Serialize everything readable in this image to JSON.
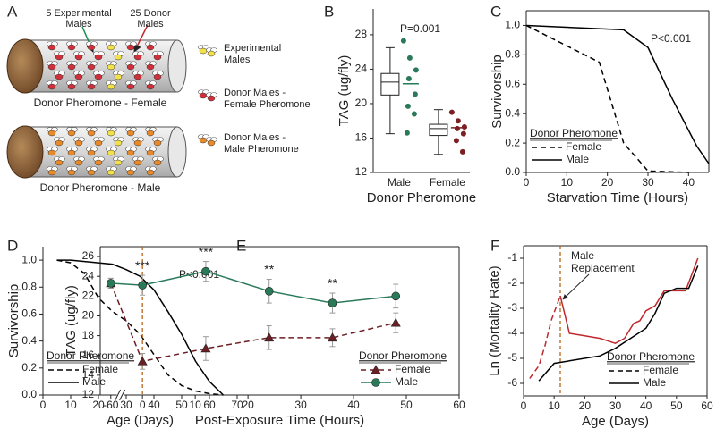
{
  "panel_labels": [
    "A",
    "B",
    "C",
    "D",
    "E",
    "F"
  ],
  "diagram": {
    "experimental_label": [
      "5 Experimental",
      "Males"
    ],
    "donor_label": [
      "25 Donor",
      "Males"
    ],
    "tube_top": "Donor Pheromone - Female",
    "tube_bottom": "Donor Pheromone - Male",
    "legend": [
      [
        "Experimental",
        "Males"
      ],
      [
        "Donor Males -",
        "Female Pheromone"
      ],
      [
        "Donor Males -",
        "Male Pheromone"
      ]
    ]
  },
  "chart_data": [
    {
      "type": "box",
      "ylabel": "TAG (ug/fly)",
      "xlabel": "Donor Pheromone",
      "annotation": "P=0.001",
      "categories": [
        "Male",
        "Female"
      ],
      "ylim": [
        12,
        31
      ],
      "yticks": [
        12,
        16,
        20,
        24,
        28
      ],
      "boxes": [
        {
          "color": "#2a7a5a",
          "whisker_low": 16.5,
          "q1": 21,
          "median": 22.5,
          "q3": 23.5,
          "whisker_high": 26.5,
          "mean": 22.3,
          "points": [
            27.3,
            25.3,
            23.9,
            22.9,
            21.1,
            19.7,
            18.8,
            16.6
          ]
        },
        {
          "color": "#7b1f24",
          "whisker_low": 14.1,
          "q1": 16.3,
          "median": 17.1,
          "q3": 17.6,
          "whisker_high": 19.3,
          "mean": 17.2,
          "points": [
            19,
            18,
            17.3,
            17.1,
            16.5,
            15.7,
            14.4
          ]
        }
      ]
    },
    {
      "type": "line",
      "ylabel": "Survivorship",
      "xlabel": "Starvation Time (Hours)",
      "annotation": "P<0.001",
      "xlim": [
        0,
        45
      ],
      "xticks": [
        0,
        10,
        20,
        30,
        40
      ],
      "ylim": [
        0,
        1.1
      ],
      "yticks": [
        {
          "value": 0,
          "label": "0.0"
        },
        0.2,
        0.4,
        0.6,
        0.8,
        {
          "value": 1,
          "label": "1.0"
        }
      ],
      "legend_title": "Donor Pheromone",
      "legend": "lower left",
      "series": [
        {
          "name": "Female",
          "color": "#000000",
          "dash": true,
          "x": [
            0,
            18,
            24,
            30,
            40
          ],
          "values": [
            1,
            0.75,
            0.2,
            0.01,
            0
          ]
        },
        {
          "name": "Male",
          "color": "#000000",
          "dash": false,
          "x": [
            0,
            24,
            30,
            36,
            42,
            45
          ],
          "values": [
            1,
            0.97,
            0.85,
            0.5,
            0.18,
            0.06
          ]
        }
      ]
    },
    {
      "type": "line",
      "ylabel": "Survivorship",
      "xlabel": "Age (Days)",
      "annotation": "P<0.001",
      "xlim": [
        0,
        70
      ],
      "xticks": [
        0,
        10,
        20,
        30,
        40,
        50,
        60,
        70
      ],
      "ylim": [
        0,
        1.1
      ],
      "yticks": [
        {
          "value": 0,
          "label": "0.0"
        },
        0.2,
        0.4,
        0.6,
        0.8,
        {
          "value": 1,
          "label": "1.0"
        }
      ],
      "legend_title": "Donor Pheromone",
      "legend": "lower left",
      "series": [
        {
          "name": "Female",
          "color": "#000000",
          "dash": true,
          "x": [
            5,
            10,
            15,
            20,
            25,
            30,
            35,
            40,
            45,
            50,
            55,
            60,
            65
          ],
          "values": [
            1,
            0.98,
            0.9,
            0.72,
            0.62,
            0.55,
            0.45,
            0.3,
            0.15,
            0.07,
            0.03,
            0.01,
            0
          ]
        },
        {
          "name": "Male",
          "color": "#000000",
          "dash": false,
          "x": [
            5,
            10,
            20,
            25,
            30,
            35,
            40,
            45,
            50,
            55,
            60,
            65
          ],
          "values": [
            1,
            1,
            0.98,
            0.97,
            0.93,
            0.88,
            0.78,
            0.62,
            0.45,
            0.25,
            0.1,
            0
          ]
        }
      ]
    },
    {
      "type": "line",
      "ylabel": "TAG (ug/fly)",
      "xlabel": "Post-Exposure Time (Hours)",
      "xlim": [
        -62,
        60
      ],
      "xbreak": [
        -58,
        -4
      ],
      "xticks": [
        -60,
        0,
        10,
        20,
        30,
        40,
        50,
        60
      ],
      "ylim": [
        12,
        27
      ],
      "yticks": [
        12,
        14,
        16,
        18,
        20,
        22,
        24,
        26
      ],
      "vline": 0,
      "stars": [
        {
          "x": 0,
          "label": "***"
        },
        {
          "x": 12,
          "label": "***"
        },
        {
          "x": 24,
          "label": "**"
        },
        {
          "x": 36,
          "label": "**"
        }
      ],
      "legend_title": "Donor Pheromone",
      "legend": "lower right",
      "series": [
        {
          "name": "Female",
          "color": "#6b1f24",
          "dash": true,
          "marker": "triangle",
          "x": [
            -60,
            0,
            12,
            24,
            36,
            48
          ],
          "values": [
            23.3,
            15.4,
            16.7,
            17.8,
            17.8,
            19.3
          ],
          "errors": [
            0.5,
            0.8,
            1.2,
            1.2,
            0.9,
            1
          ]
        },
        {
          "name": "Male",
          "color": "#2a7a5a",
          "dash": false,
          "marker": "circle",
          "x": [
            -60,
            0,
            12,
            24,
            36,
            48
          ],
          "values": [
            23.3,
            23.1,
            24.5,
            22.5,
            21.3,
            22
          ],
          "errors": [
            0.5,
            1,
            1,
            1.2,
            1,
            1.2
          ]
        }
      ]
    },
    {
      "type": "line",
      "ylabel": "Ln (Mortality Rate)",
      "xlabel": "Age (Days)",
      "xlim": [
        0,
        60
      ],
      "xticks": [
        0,
        10,
        20,
        30,
        40,
        50,
        60
      ],
      "ylim": [
        -6.5,
        -0.5
      ],
      "yticks": [
        -6,
        -5,
        -4,
        -3,
        -2,
        -1
      ],
      "vline": 12,
      "annotation_lines": [
        "Male",
        "Replacement"
      ],
      "legend_title": "Donor Pheromone",
      "legend": "lower right",
      "series": [
        {
          "name": "Female",
          "color": "#c0282d",
          "dash": true,
          "dash_until": 12,
          "x": [
            2,
            5,
            7,
            9,
            12,
            15,
            20,
            25,
            30,
            33,
            36,
            38,
            40,
            43,
            46,
            49,
            53,
            57
          ],
          "values": [
            -5.8,
            -5.3,
            -4.5,
            -3.5,
            -2.5,
            -4,
            -4.1,
            -4.2,
            -4.4,
            -4.2,
            -3.6,
            -3.5,
            -3.1,
            -2.9,
            -2.3,
            -2.3,
            -2.3,
            -1
          ]
        },
        {
          "name": "Male",
          "color": "#000000",
          "dash": false,
          "x": [
            5,
            10,
            15,
            25,
            30,
            35,
            40,
            43,
            46,
            50,
            54,
            57
          ],
          "values": [
            -5.9,
            -5.2,
            -5.1,
            -4.9,
            -4.6,
            -4.2,
            -3.8,
            -3.2,
            -2.4,
            -2.2,
            -2.2,
            -1.3
          ]
        }
      ]
    }
  ]
}
